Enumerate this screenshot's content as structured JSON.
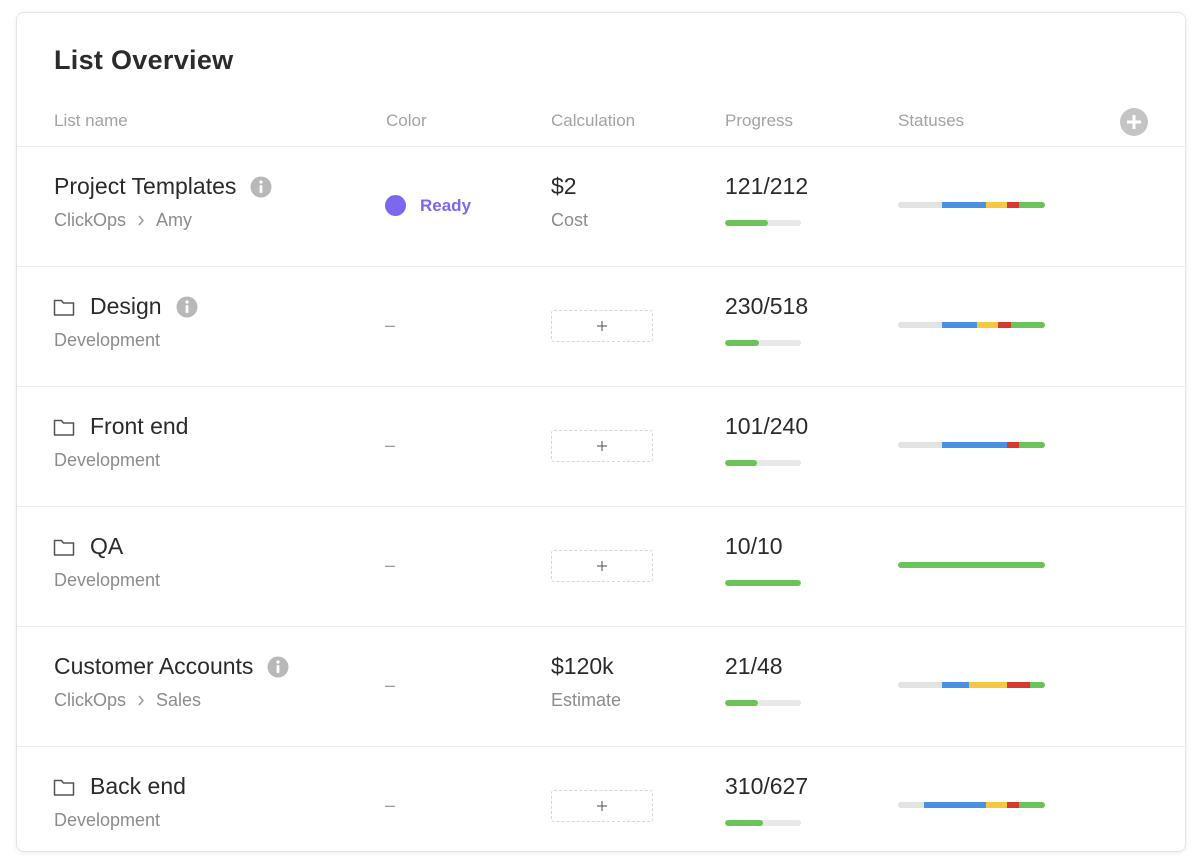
{
  "title": "List Overview",
  "columns": [
    "List name",
    "Color",
    "Calculation",
    "Progress",
    "Statuses"
  ],
  "rows": [
    {
      "name": "Project Templates",
      "kind": "list",
      "info": true,
      "path": [
        "ClickOps",
        "Amy"
      ],
      "color": {
        "label": "Ready",
        "dot": "#7b68ee"
      },
      "calculation": {
        "value": "$2",
        "label": "Cost"
      },
      "progress": {
        "label": "121/212",
        "done": 121,
        "total": 212
      },
      "statuses": [
        {
          "color": "#e3e3e3",
          "value": 30
        },
        {
          "color": "#4a90e2",
          "value": 30
        },
        {
          "color": "#f5c842",
          "value": 14
        },
        {
          "color": "#d63a2e",
          "value": 8
        },
        {
          "color": "#6cc35a",
          "value": 18
        }
      ]
    },
    {
      "name": "Design",
      "kind": "folder",
      "info": true,
      "path": [
        "Development"
      ],
      "color": "–",
      "calculation": null,
      "progress": {
        "label": "230/518",
        "done": 230,
        "total": 518
      },
      "statuses": [
        {
          "color": "#e3e3e3",
          "value": 30
        },
        {
          "color": "#4a90e2",
          "value": 24
        },
        {
          "color": "#f5c842",
          "value": 14
        },
        {
          "color": "#d63a2e",
          "value": 9
        },
        {
          "color": "#6cc35a",
          "value": 23
        }
      ]
    },
    {
      "name": "Front end",
      "kind": "folder",
      "info": false,
      "path": [
        "Development"
      ],
      "color": "–",
      "calculation": null,
      "progress": {
        "label": "101/240",
        "done": 101,
        "total": 240
      },
      "statuses": [
        {
          "color": "#e3e3e3",
          "value": 30
        },
        {
          "color": "#4a90e2",
          "value": 44
        },
        {
          "color": "#d63a2e",
          "value": 8
        },
        {
          "color": "#6cc35a",
          "value": 18
        }
      ]
    },
    {
      "name": "QA",
      "kind": "folder",
      "info": false,
      "path": [
        "Development"
      ],
      "color": "–",
      "calculation": null,
      "progress": {
        "label": "10/10",
        "done": 10,
        "total": 10
      },
      "statuses": [
        {
          "color": "#6cc35a",
          "value": 100
        }
      ]
    },
    {
      "name": "Customer Accounts",
      "kind": "list",
      "info": true,
      "path": [
        "ClickOps",
        "Sales"
      ],
      "color": "–",
      "calculation": {
        "value": "$120k",
        "label": "Estimate"
      },
      "progress": {
        "label": "21/48",
        "done": 21,
        "total": 48
      },
      "statuses": [
        {
          "color": "#e3e3e3",
          "value": 30
        },
        {
          "color": "#4a90e2",
          "value": 18
        },
        {
          "color": "#f5c842",
          "value": 26
        },
        {
          "color": "#d63a2e",
          "value": 16
        },
        {
          "color": "#6cc35a",
          "value": 10
        }
      ]
    },
    {
      "name": "Back end",
      "kind": "folder",
      "info": false,
      "path": [
        "Development"
      ],
      "color": "–",
      "calculation": null,
      "progress": {
        "label": "310/627",
        "done": 310,
        "total": 627
      },
      "statuses": [
        {
          "color": "#e3e3e3",
          "value": 18
        },
        {
          "color": "#4a90e2",
          "value": 42
        },
        {
          "color": "#f5c842",
          "value": 14
        },
        {
          "color": "#d63a2e",
          "value": 8
        },
        {
          "color": "#6cc35a",
          "value": 18
        }
      ]
    }
  ]
}
